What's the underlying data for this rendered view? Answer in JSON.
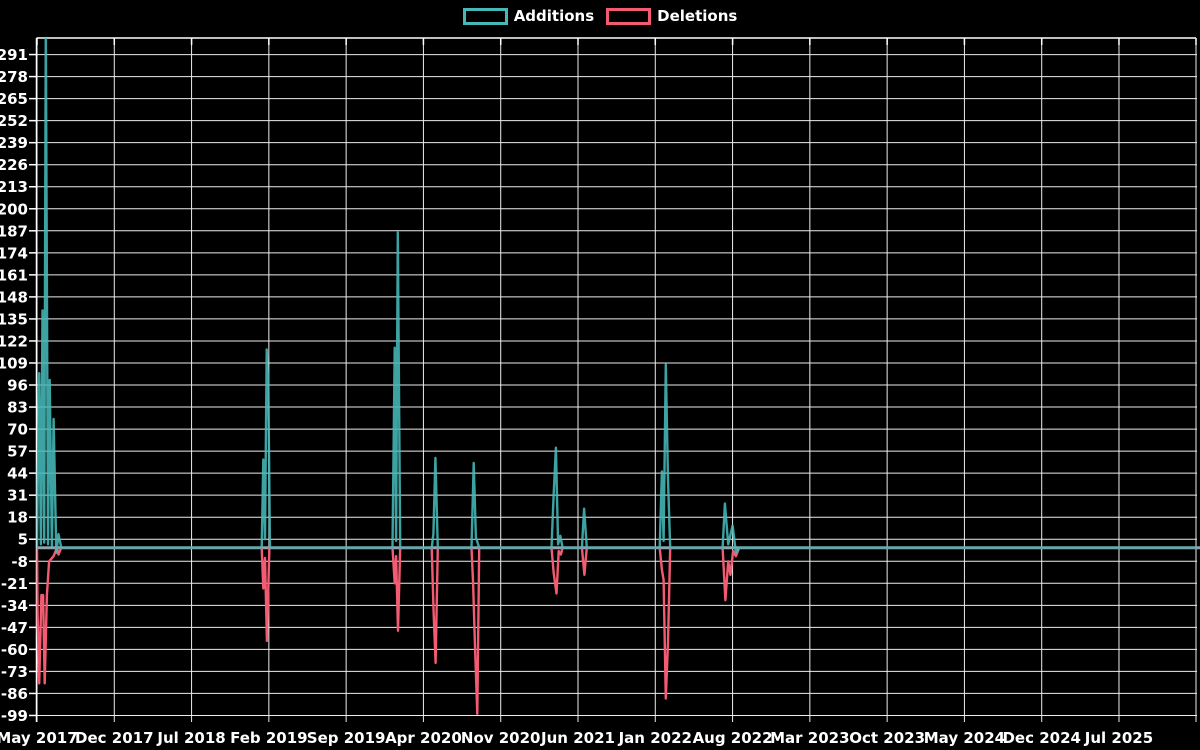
{
  "chart_data": {
    "type": "line",
    "title": "",
    "xlabel": "",
    "ylabel": "",
    "grid": true,
    "background_color": "#000000",
    "grid_color": "#ededed",
    "text_color": "#ffffff",
    "zero_line_color": "#8ba4ad",
    "legend_position": "top-center",
    "x_unit": "months since May 2017",
    "x_tick_interval_months": 7,
    "x_tick_labels": [
      "May 2017",
      "Dec 2017",
      "Jul 2018",
      "Feb 2019",
      "Sep 2019",
      "Apr 2020",
      "Nov 2020",
      "Jun 2021",
      "Jan 2022",
      "Aug 2022",
      "Mar 2023",
      "Oct 2023",
      "May 2024",
      "Dec 2024",
      "Jul 2025"
    ],
    "y_ticks": [
      291,
      278,
      265,
      252,
      239,
      226,
      213,
      200,
      187,
      174,
      161,
      148,
      135,
      122,
      109,
      96,
      83,
      70,
      57,
      44,
      31,
      18,
      5,
      -8,
      -21,
      -34,
      -47,
      -60,
      -73,
      -86,
      -99
    ],
    "ylim": [
      -99,
      301
    ],
    "series": [
      {
        "name": "Additions",
        "color": "#46b8b8",
        "points": [
          [
            0,
            0
          ],
          [
            0.05,
            31
          ],
          [
            0.2,
            103
          ],
          [
            0.35,
            2
          ],
          [
            0.5,
            140
          ],
          [
            0.65,
            3
          ],
          [
            0.8,
            310
          ],
          [
            1.0,
            2
          ],
          [
            1.15,
            99
          ],
          [
            1.35,
            1
          ],
          [
            1.5,
            76
          ],
          [
            1.75,
            -3
          ],
          [
            1.95,
            8
          ],
          [
            2.2,
            0
          ],
          [
            20.35,
            0
          ],
          [
            20.5,
            52
          ],
          [
            20.65,
            5
          ],
          [
            20.8,
            117
          ],
          [
            20.95,
            95
          ],
          [
            21.1,
            0
          ],
          [
            32.2,
            0
          ],
          [
            32.4,
            118
          ],
          [
            32.52,
            4
          ],
          [
            32.68,
            186
          ],
          [
            32.9,
            0
          ],
          [
            35.75,
            0
          ],
          [
            35.9,
            8
          ],
          [
            36.08,
            53
          ],
          [
            36.3,
            0
          ],
          [
            39.35,
            0
          ],
          [
            39.55,
            50
          ],
          [
            39.75,
            6
          ],
          [
            40.05,
            0
          ],
          [
            46.6,
            0
          ],
          [
            46.8,
            32
          ],
          [
            47.0,
            59
          ],
          [
            47.2,
            2
          ],
          [
            47.4,
            7
          ],
          [
            47.6,
            0
          ],
          [
            49.35,
            0
          ],
          [
            49.55,
            23
          ],
          [
            49.8,
            0
          ],
          [
            56.4,
            0
          ],
          [
            56.6,
            45
          ],
          [
            56.75,
            4
          ],
          [
            56.95,
            108
          ],
          [
            57.15,
            40
          ],
          [
            57.35,
            0
          ],
          [
            62.1,
            0
          ],
          [
            62.3,
            26
          ],
          [
            62.6,
            2
          ],
          [
            63.0,
            13
          ],
          [
            63.3,
            -3
          ],
          [
            63.6,
            0
          ],
          [
            105.2,
            0
          ]
        ]
      },
      {
        "name": "Deletions",
        "color": "#f25b72",
        "points": [
          [
            0,
            0
          ],
          [
            0.05,
            -40
          ],
          [
            0.2,
            -80
          ],
          [
            0.4,
            -28
          ],
          [
            0.55,
            -28
          ],
          [
            0.7,
            -80
          ],
          [
            0.9,
            -28
          ],
          [
            1.1,
            -8
          ],
          [
            1.5,
            -5
          ],
          [
            1.8,
            0
          ],
          [
            1.95,
            -4
          ],
          [
            2.2,
            0
          ],
          [
            20.35,
            0
          ],
          [
            20.5,
            -24
          ],
          [
            20.65,
            -6
          ],
          [
            20.82,
            -55
          ],
          [
            21.05,
            0
          ],
          [
            32.2,
            0
          ],
          [
            32.4,
            -21
          ],
          [
            32.52,
            -5
          ],
          [
            32.7,
            -49
          ],
          [
            32.9,
            0
          ],
          [
            35.75,
            0
          ],
          [
            35.92,
            -38
          ],
          [
            36.1,
            -68
          ],
          [
            36.3,
            0
          ],
          [
            39.35,
            0
          ],
          [
            39.5,
            -21
          ],
          [
            39.68,
            -60
          ],
          [
            39.88,
            -98
          ],
          [
            40.05,
            0
          ],
          [
            46.6,
            0
          ],
          [
            46.8,
            -15
          ],
          [
            47.05,
            -27
          ],
          [
            47.25,
            -2
          ],
          [
            47.45,
            -4
          ],
          [
            47.6,
            0
          ],
          [
            49.35,
            0
          ],
          [
            49.58,
            -16
          ],
          [
            49.8,
            0
          ],
          [
            56.4,
            0
          ],
          [
            56.6,
            -13
          ],
          [
            56.75,
            -19
          ],
          [
            56.95,
            -89
          ],
          [
            57.15,
            -56
          ],
          [
            57.35,
            0
          ],
          [
            62.1,
            0
          ],
          [
            62.35,
            -31
          ],
          [
            62.6,
            -8
          ],
          [
            62.8,
            -16
          ],
          [
            63.05,
            -2
          ],
          [
            63.3,
            -5
          ],
          [
            63.6,
            0
          ],
          [
            105.2,
            0
          ]
        ]
      }
    ]
  }
}
